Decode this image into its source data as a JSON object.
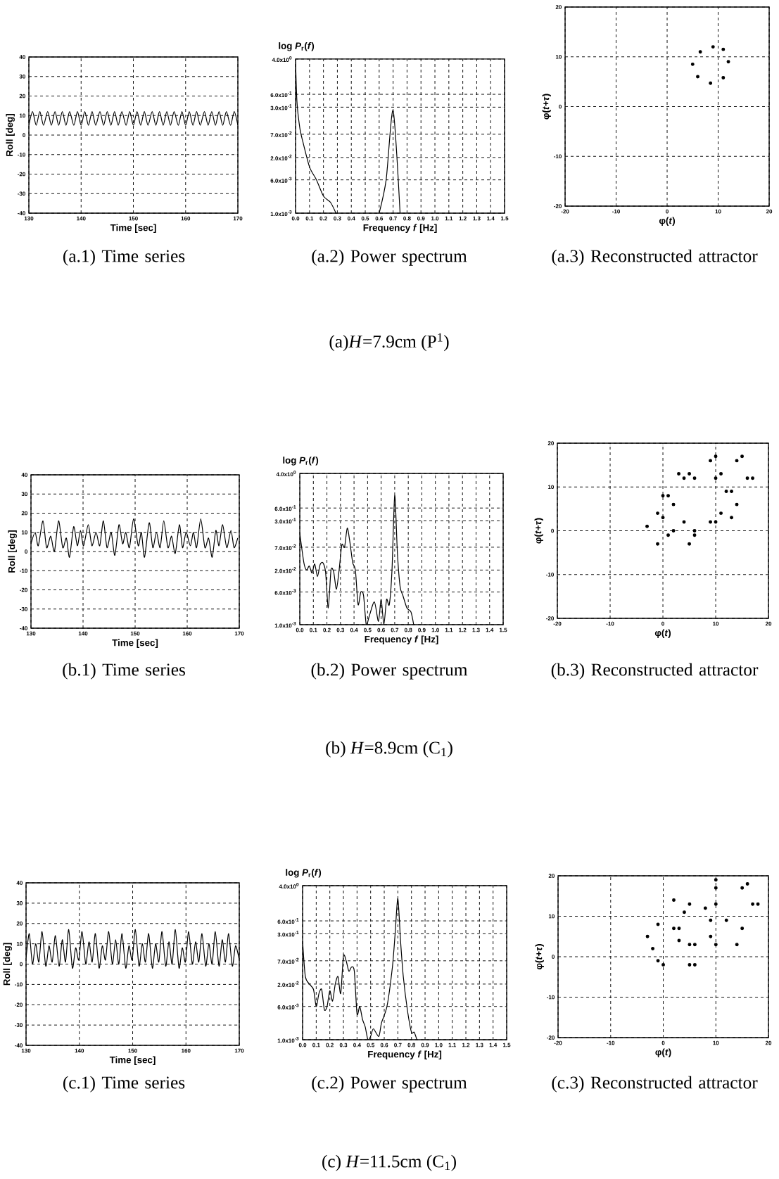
{
  "chart_data": [
    {
      "type": "line",
      "title": "(a.1) Time series",
      "xlabel": "Time [sec]",
      "ylabel": "Roll [deg]",
      "xlim": [
        130,
        170
      ],
      "ylim": [
        -40,
        40
      ],
      "xticks": [
        130,
        140,
        150,
        160,
        170
      ],
      "yticks": [
        -40,
        -30,
        -20,
        -10,
        0,
        10,
        20,
        30,
        40
      ],
      "grid": true,
      "x": [
        130.0,
        130.7,
        131.4,
        132.1,
        132.8,
        133.6,
        134.3,
        135.0,
        135.7,
        136.4,
        137.1,
        137.8,
        138.6,
        139.3,
        140.0,
        140.7,
        141.4,
        142.1,
        142.8,
        143.6,
        144.3,
        145.0,
        145.7,
        146.4,
        147.1,
        147.8,
        148.6,
        149.3,
        150.0,
        150.7,
        151.4,
        152.1,
        152.8,
        153.6,
        154.3,
        155.0,
        155.7,
        156.4,
        157.1,
        157.8,
        158.6,
        159.3,
        160.0,
        160.7,
        161.4,
        162.1,
        162.8,
        163.6,
        164.3,
        165.0,
        165.7,
        166.4,
        167.1,
        167.8,
        168.6,
        169.3,
        170.0
      ],
      "values": [
        5,
        12,
        5,
        12,
        5,
        12,
        5,
        12,
        5,
        12,
        5,
        12,
        5,
        12,
        5,
        12,
        5,
        12,
        5,
        12,
        5,
        12,
        5,
        12,
        5,
        12,
        5,
        12,
        5,
        12,
        5,
        12,
        5,
        12,
        5,
        12,
        5,
        12,
        5,
        12,
        5,
        12,
        5,
        12,
        5,
        12,
        5,
        12,
        5,
        12,
        5,
        12,
        5,
        12,
        5,
        12,
        5
      ]
    },
    {
      "type": "line",
      "title": "(a.2) Power spectrum",
      "xlabel": "Frequency *f*  [Hz]",
      "ylabel": "log *P*$_{r}$(*f*)",
      "log": "y",
      "grid": true,
      "xlim": [
        0,
        1.5
      ],
      "ylim": [
        0.001,
        4
      ],
      "xticks": [
        {
          "value": 0,
          "label": "0.0"
        },
        {
          "value": 0.1,
          "label": "0.1"
        },
        {
          "value": 0.2,
          "label": "0.2"
        },
        {
          "value": 0.3,
          "label": "0.3"
        },
        {
          "value": 0.4,
          "label": "0.4"
        },
        {
          "value": 0.5,
          "label": "0.5"
        },
        {
          "value": 0.6,
          "label": "0.6"
        },
        {
          "value": 0.7,
          "label": "0.7"
        },
        {
          "value": 0.8,
          "label": "0.8"
        },
        {
          "value": 0.9,
          "label": "0.9"
        },
        {
          "value": 1.0,
          "label": "1.0"
        },
        {
          "value": 1.1,
          "label": "1.1"
        },
        {
          "value": 1.2,
          "label": "1.2"
        },
        {
          "value": 1.3,
          "label": "1.3"
        },
        {
          "value": 1.4,
          "label": "1.4"
        },
        {
          "value": 1.5,
          "label": "1.5"
        }
      ],
      "yticks": [
        {
          "value": 0.001,
          "label": "1.0x10$^{-3}$"
        },
        {
          "value": 0.006,
          "label": "6.0x10$^{-3}$"
        },
        {
          "value": 0.02,
          "label": "2.0x10$^{-2}$"
        },
        {
          "value": 0.07,
          "label": "7.0x10$^{-2}$"
        },
        {
          "value": 0.3,
          "label": "3.0x10$^{-1}$"
        },
        {
          "value": 0.6,
          "label": "6.0x10$^{-1}$"
        },
        {
          "value": 4,
          "label": "4.0x10$^{0}$"
        }
      ],
      "x": [
        0.0,
        0.01,
        0.03,
        0.05,
        0.1,
        0.15,
        0.2,
        0.25,
        0.29,
        null,
        0.6,
        0.65,
        0.7,
        0.75
      ],
      "values": [
        3.5,
        0.4,
        0.1,
        0.05,
        0.012,
        0.006,
        0.0025,
        0.0018,
        0.001,
        null,
        0.001,
        0.006,
        0.25,
        0.001
      ],
      "annotations": [
        "(a)*H*=7.9cm (P$^{1}$)"
      ]
    },
    {
      "type": "scatter",
      "marker": "circle",
      "title": "(a.3) Reconstructed attractor",
      "xlabel": "φ(*t*)",
      "ylabel": "φ(*t*+*τ*)",
      "xlim": [
        -20,
        20
      ],
      "ylim": [
        -20,
        20
      ],
      "xticks": [
        -20,
        -10,
        0,
        10,
        20
      ],
      "yticks": [
        -20,
        -10,
        0,
        10,
        20
      ],
      "grid": true,
      "x": [
        12,
        11,
        9,
        6.5,
        5,
        6,
        8.5,
        11
      ],
      "values": [
        9,
        11.5,
        12,
        11,
        8.5,
        6,
        4.7,
        5.8
      ]
    },
    {
      "type": "line",
      "title": "(b.1) Time series",
      "xlabel": "Time [sec]",
      "ylabel": "Roll [deg]",
      "xlim": [
        130,
        170
      ],
      "ylim": [
        -40,
        40
      ],
      "xticks": [
        130,
        140,
        150,
        160,
        170
      ],
      "yticks": [
        -40,
        -30,
        -20,
        -10,
        0,
        10,
        20,
        30,
        40
      ],
      "grid": true,
      "x": [
        130.0,
        130.8,
        131.4,
        132.3,
        133.0,
        133.8,
        134.5,
        135.3,
        136.1,
        136.8,
        137.4,
        138.2,
        138.9,
        139.5,
        140.1,
        141.0,
        141.7,
        142.5,
        143.2,
        143.9,
        144.6,
        145.4,
        146.1,
        146.9,
        147.6,
        148.2,
        148.9,
        149.7,
        150.6,
        151.2,
        151.8,
        152.7,
        153.4,
        154.1,
        154.8,
        155.5,
        156.3,
        157.0,
        157.7,
        158.5,
        159.1,
        159.8,
        160.6,
        161.2,
        161.8,
        162.6,
        163.4,
        164.1,
        164.8,
        165.5,
        166.1,
        166.8,
        167.6,
        168.4,
        169.0,
        169.7
      ],
      "values": [
        4,
        10,
        3,
        16,
        2,
        8,
        0,
        16,
        2,
        7,
        -3,
        13,
        3,
        11,
        3,
        14,
        3,
        10,
        3,
        16,
        2,
        10,
        -2,
        14,
        4,
        10,
        2,
        17,
        3,
        10,
        -3,
        15,
        2,
        10,
        2,
        16,
        2,
        8,
        -1,
        14,
        2,
        10,
        3,
        10,
        2,
        17,
        2,
        7,
        -3,
        11,
        3,
        14,
        2,
        11,
        2,
        7
      ]
    },
    {
      "type": "line",
      "title": "(b.2) Power spectrum",
      "xlabel": "Frequency *f*  [Hz]",
      "ylabel": "log *P*$_{r}$(*f*)",
      "log": "y",
      "grid": true,
      "xlim": [
        0,
        1.5
      ],
      "ylim": [
        0.001,
        4
      ],
      "xticks": [
        {
          "value": 0,
          "label": "0.0"
        },
        {
          "value": 0.1,
          "label": "0.1"
        },
        {
          "value": 0.2,
          "label": "0.2"
        },
        {
          "value": 0.3,
          "label": "0.3"
        },
        {
          "value": 0.4,
          "label": "0.4"
        },
        {
          "value": 0.5,
          "label": "0.5"
        },
        {
          "value": 0.6,
          "label": "0.6"
        },
        {
          "value": 0.7,
          "label": "0.7"
        },
        {
          "value": 0.8,
          "label": "0.8"
        },
        {
          "value": 0.9,
          "label": "0.9"
        },
        {
          "value": 1.0,
          "label": "1.0"
        },
        {
          "value": 1.1,
          "label": "1.1"
        },
        {
          "value": 1.2,
          "label": "1.2"
        },
        {
          "value": 1.3,
          "label": "1.3"
        },
        {
          "value": 1.4,
          "label": "1.4"
        },
        {
          "value": 1.5,
          "label": "1.5"
        }
      ],
      "yticks": [
        {
          "value": 0.001,
          "label": "1.0x10$^{-3}$"
        },
        {
          "value": 0.006,
          "label": "6.0x10$^{-3}$"
        },
        {
          "value": 0.02,
          "label": "2.0x10$^{-2}$"
        },
        {
          "value": 0.07,
          "label": "7.0x10$^{-2}$"
        },
        {
          "value": 0.3,
          "label": "3.0x10$^{-1}$"
        },
        {
          "value": 0.6,
          "label": "6.0x10$^{-1}$"
        },
        {
          "value": 4,
          "label": "4.0x10$^{0}$"
        }
      ],
      "x": [
        0.0,
        0.03,
        0.05,
        0.07,
        0.09,
        0.11,
        0.13,
        0.15,
        0.17,
        0.19,
        0.21,
        0.23,
        0.25,
        0.27,
        0.29,
        0.31,
        0.33,
        0.35,
        0.37,
        0.39,
        0.41,
        0.43,
        0.45,
        0.47,
        0.49,
        0.51,
        0.55,
        0.58,
        0.6,
        0.62,
        0.64,
        0.66,
        0.68,
        0.7,
        0.72,
        0.74,
        0.76,
        0.79,
        0.82,
        0.84
      ],
      "values": [
        0.15,
        0.03,
        0.02,
        0.025,
        0.017,
        0.028,
        0.014,
        0.027,
        0.03,
        0.018,
        0.0025,
        0.02,
        0.018,
        0.007,
        0.02,
        0.08,
        0.07,
        0.2,
        0.09,
        0.03,
        0.02,
        0.003,
        0.006,
        0.005,
        0.001,
        0.0015,
        0.0035,
        0.0012,
        0.004,
        0.001,
        0.004,
        0.003,
        0.02,
        1.2,
        0.05,
        0.008,
        0.005,
        0.0025,
        0.002,
        0.001
      ],
      "annotations": [
        "(b) *H*=8.9cm (C$_{1}$)"
      ]
    },
    {
      "type": "scatter",
      "marker": "circle",
      "title": "(b.3) Reconstructed attractor",
      "xlabel": "φ(*t*)",
      "ylabel": "φ(*t*+*τ*)",
      "xlim": [
        -20,
        20
      ],
      "ylim": [
        -20,
        20
      ],
      "xticks": [
        -20,
        -10,
        0,
        10,
        20
      ],
      "yticks": [
        -20,
        -10,
        0,
        10,
        20
      ],
      "grid": true,
      "x": [
        17,
        15,
        10,
        3,
        -1,
        1,
        6,
        13,
        12,
        10,
        6,
        1,
        0,
        2,
        6,
        11,
        16,
        14,
        9,
        4,
        2,
        4,
        9,
        14,
        13,
        11,
        5,
        0,
        -3,
        -1,
        5,
        10
      ],
      "values": [
        12,
        17,
        17,
        13,
        4,
        -1,
        -1,
        3,
        9,
        12,
        12,
        8,
        3,
        0,
        0,
        4,
        12,
        16,
        16,
        12,
        6,
        2,
        2,
        6,
        9,
        13,
        13,
        8,
        1,
        -3,
        -3,
        2
      ]
    },
    {
      "type": "line",
      "title": "(c.1) Time series",
      "xlabel": "Time [sec]",
      "ylabel": "Roll [deg]",
      "xlim": [
        130,
        170
      ],
      "ylim": [
        -40,
        40
      ],
      "xticks": [
        130,
        140,
        150,
        160,
        170
      ],
      "yticks": [
        -40,
        -30,
        -20,
        -10,
        0,
        10,
        20,
        30,
        40
      ],
      "grid": true,
      "x": [
        130.0,
        130.6,
        131.2,
        131.8,
        132.4,
        133.0,
        133.7,
        134.3,
        134.9,
        135.5,
        136.2,
        136.8,
        137.4,
        138.0,
        138.7,
        139.3,
        139.9,
        140.5,
        141.2,
        141.8,
        142.4,
        143.0,
        143.7,
        144.3,
        144.9,
        145.5,
        146.2,
        146.8,
        147.4,
        148.0,
        148.7,
        149.3,
        149.9,
        150.5,
        151.2,
        151.8,
        152.4,
        153.0,
        153.7,
        154.3,
        154.9,
        155.5,
        156.2,
        156.8,
        157.4,
        158.0,
        158.7,
        159.3,
        159.9,
        160.5,
        161.2,
        161.8,
        162.4,
        163.0,
        163.7,
        164.3,
        164.9,
        165.5,
        166.2,
        166.8,
        167.4,
        168.0,
        168.7,
        169.3,
        170.0
      ],
      "values": [
        3,
        15,
        0,
        10,
        1,
        16,
        -1,
        9,
        1,
        14,
        -1,
        12,
        1,
        17,
        -2,
        8,
        2,
        16,
        0,
        11,
        1,
        15,
        -2,
        9,
        2,
        16,
        0,
        12,
        0,
        15,
        -2,
        9,
        2,
        17,
        -1,
        10,
        1,
        15,
        -2,
        10,
        1,
        16,
        -1,
        11,
        0,
        17,
        -2,
        8,
        1,
        16,
        0,
        11,
        1,
        15,
        -1,
        10,
        0,
        16,
        -1,
        12,
        1,
        15,
        -1,
        9,
        2
      ]
    },
    {
      "type": "line",
      "title": "(c.2) Power spectrum",
      "xlabel": "Frequency *f*  [Hz]",
      "ylabel": "log *P*$_{r}$(*f*)",
      "log": "y",
      "grid": true,
      "xlim": [
        0,
        1.5
      ],
      "ylim": [
        0.001,
        4
      ],
      "xticks": [
        {
          "value": 0,
          "label": "0.0"
        },
        {
          "value": 0.1,
          "label": "0.1"
        },
        {
          "value": 0.2,
          "label": "0.2"
        },
        {
          "value": 0.3,
          "label": "0.3"
        },
        {
          "value": 0.4,
          "label": "0.4"
        },
        {
          "value": 0.5,
          "label": "0.5"
        },
        {
          "value": 0.6,
          "label": "0.6"
        },
        {
          "value": 0.7,
          "label": "0.7"
        },
        {
          "value": 0.8,
          "label": "0.8"
        },
        {
          "value": 0.9,
          "label": "0.9"
        },
        {
          "value": 1.0,
          "label": "1.0"
        },
        {
          "value": 1.1,
          "label": "1.1"
        },
        {
          "value": 1.2,
          "label": "1.2"
        },
        {
          "value": 1.3,
          "label": "1.3"
        },
        {
          "value": 1.4,
          "label": "1.4"
        },
        {
          "value": 1.5,
          "label": "1.5"
        }
      ],
      "yticks": [
        {
          "value": 0.001,
          "label": "1.0x10$^{-3}$"
        },
        {
          "value": 0.006,
          "label": "6.0x10$^{-3}$"
        },
        {
          "value": 0.02,
          "label": "2.0x10$^{-2}$"
        },
        {
          "value": 0.07,
          "label": "7.0x10$^{-2}$"
        },
        {
          "value": 0.3,
          "label": "3.0x10$^{-1}$"
        },
        {
          "value": 0.6,
          "label": "6.0x10$^{-1}$"
        },
        {
          "value": 4,
          "label": "4.0x10$^{0}$"
        }
      ],
      "x": [
        0.0,
        0.02,
        0.05,
        0.08,
        0.1,
        0.12,
        0.14,
        0.16,
        0.18,
        0.2,
        0.22,
        0.24,
        0.26,
        0.28,
        0.3,
        0.32,
        0.34,
        0.36,
        0.38,
        0.4,
        0.42,
        0.44,
        0.46,
        0.48,
        0.5,
        0.52,
        0.56,
        0.58,
        0.62,
        0.66,
        0.68,
        0.7,
        0.72,
        0.74,
        0.77,
        0.8,
        0.82,
        0.84
      ],
      "values": [
        0.2,
        0.03,
        0.02,
        0.015,
        0.006,
        0.012,
        0.015,
        0.005,
        0.006,
        0.014,
        0.008,
        0.02,
        0.03,
        0.012,
        0.09,
        0.07,
        0.04,
        0.05,
        0.04,
        0.004,
        0.006,
        0.003,
        0.002,
        0.001,
        0.0012,
        0.0018,
        0.0012,
        0.0025,
        0.006,
        0.05,
        0.3,
        2.0,
        0.2,
        0.03,
        0.005,
        0.0015,
        0.0015,
        0.001
      ],
      "annotations": [
        "(c) *H*=11.5cm (C$_{1}$)"
      ]
    },
    {
      "type": "scatter",
      "marker": "circle",
      "title": "(c.3) Reconstructed attractor",
      "xlabel": "φ(*t*)",
      "ylabel": "φ(*t*+*τ*)",
      "xlim": [
        -20,
        20
      ],
      "ylim": [
        -20,
        20
      ],
      "xticks": [
        -20,
        -10,
        0,
        10,
        20
      ],
      "yticks": [
        -20,
        -10,
        0,
        10,
        20
      ],
      "grid": true,
      "x": [
        18,
        16,
        10,
        2,
        -3,
        -1,
        6,
        14,
        12,
        10,
        5,
        -1,
        -2,
        0,
        5,
        10,
        17,
        15,
        10,
        3,
        5,
        15,
        9,
        8,
        4,
        2,
        3,
        6,
        9
      ],
      "values": [
        13,
        18,
        19,
        14,
        5,
        -1,
        -2,
        3,
        9,
        13,
        13,
        8,
        2,
        -2,
        -2,
        3,
        13,
        17,
        17,
        7,
        3,
        7,
        9,
        12,
        11,
        7,
        4,
        3,
        5
      ]
    }
  ]
}
